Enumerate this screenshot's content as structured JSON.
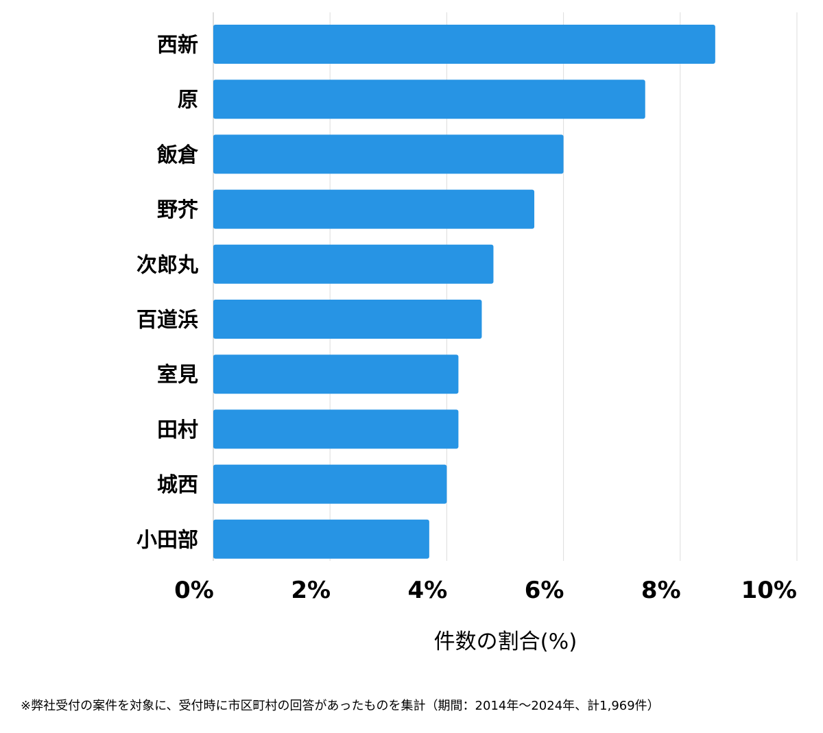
{
  "chart_data": {
    "type": "bar",
    "orientation": "horizontal",
    "categories": [
      "西新",
      "原",
      "飯倉",
      "野芥",
      "次郎丸",
      "百道浜",
      "室見",
      "田村",
      "城西",
      "小田部"
    ],
    "values": [
      8.6,
      7.4,
      6.0,
      5.5,
      4.8,
      4.6,
      4.2,
      4.2,
      4.0,
      3.7
    ],
    "xlabel": "件数の割合(%)",
    "xlim": [
      0,
      10
    ],
    "ticks": [
      0,
      2,
      4,
      6,
      8,
      10
    ],
    "tick_labels": [
      "0%",
      "2%",
      "4%",
      "6%",
      "8%",
      "10%"
    ],
    "grid": true,
    "bar_color": "#2794e4"
  },
  "footnote": "※弊社受付の案件を対象に、受付時に市区町村の回答があったものを集計（期間：2014年～2024年、計1,969件）"
}
